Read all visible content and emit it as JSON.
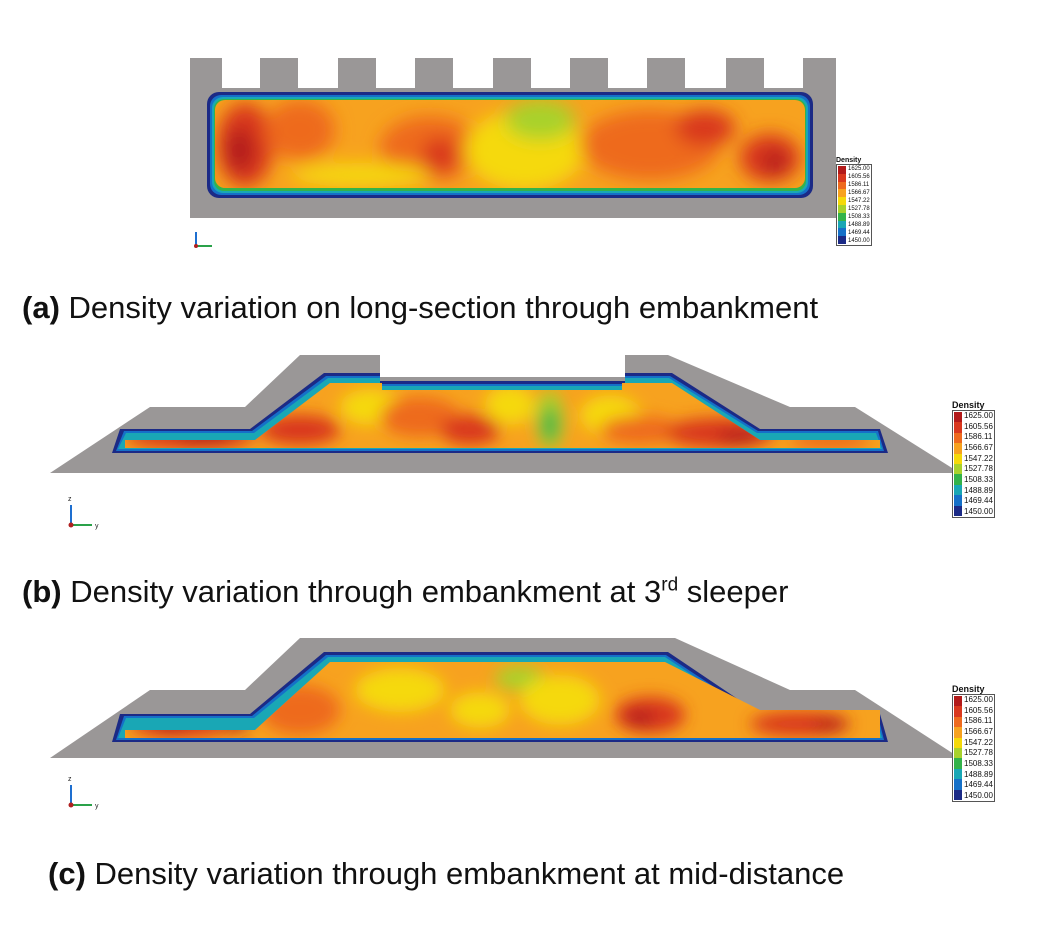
{
  "legend": {
    "title": "Density",
    "ticks": [
      "1625.00",
      "1605.56",
      "1586.11",
      "1566.67",
      "1547.22",
      "1527.78",
      "1508.33",
      "1488.89",
      "1469.44",
      "1450.00"
    ],
    "colors": [
      "#b21a1a",
      "#d9381e",
      "#ee6a1e",
      "#f7a21f",
      "#f5d90a",
      "#a8d22c",
      "#33b34a",
      "#19a7b5",
      "#1570c8",
      "#1b2a86"
    ]
  },
  "panels": [
    {
      "label": "(a)",
      "caption": "Density variation on long-section through embankment",
      "axes": [
        "z",
        "x"
      ]
    },
    {
      "label": "(b)",
      "caption_pre": "Density variation through embankment at 3",
      "caption_sup": "rd",
      "caption_post": " sleeper",
      "axes": [
        "z",
        "y"
      ]
    },
    {
      "label": "(c)",
      "caption": "Density variation through embankment at mid-distance",
      "axes": [
        "z",
        "y"
      ]
    }
  ]
}
